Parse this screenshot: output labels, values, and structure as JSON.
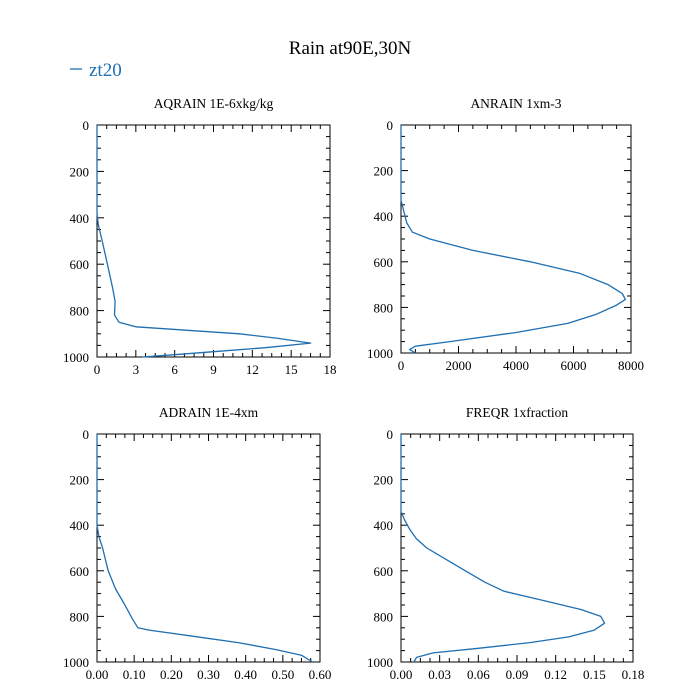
{
  "title": "Rain at90E,30N",
  "legend": {
    "label": "zt20",
    "color": "#1f6fb2"
  },
  "chart_data": [
    {
      "type": "line",
      "title": "AQRAIN  1E-6xkg/kg",
      "xlim": [
        0,
        18
      ],
      "ylim": [
        1000,
        0
      ],
      "xticks": [
        0,
        3,
        6,
        9,
        12,
        15,
        18
      ],
      "xtick_labels": [
        "0",
        "3",
        "6",
        "9",
        "12",
        "15",
        "18"
      ],
      "yticks": [
        0,
        200,
        400,
        600,
        800,
        1000
      ],
      "ytick_labels": [
        "0",
        "200",
        "400",
        "600",
        "800",
        "1000"
      ],
      "series": [
        {
          "name": "zt20",
          "points": [
            [
              0,
              0
            ],
            [
              0,
              380
            ],
            [
              0.1,
              430
            ],
            [
              0.4,
              500
            ],
            [
              0.8,
              600
            ],
            [
              1.2,
              700
            ],
            [
              1.4,
              760
            ],
            [
              1.35,
              820
            ],
            [
              1.7,
              850
            ],
            [
              3,
              870
            ],
            [
              7,
              885
            ],
            [
              11,
              900
            ],
            [
              14,
              920
            ],
            [
              16.5,
              940
            ],
            [
              13,
              960
            ],
            [
              9.5,
              975
            ],
            [
              6,
              990
            ],
            [
              3.5,
              1000
            ]
          ]
        }
      ]
    },
    {
      "type": "line",
      "title": "ANRAIN  1xm-3",
      "xlim": [
        0,
        8000
      ],
      "ylim": [
        1000,
        0
      ],
      "xticks": [
        0,
        2000,
        4000,
        6000,
        8000
      ],
      "xtick_labels": [
        "0",
        "2000",
        "4000",
        "6000",
        "8000"
      ],
      "yticks": [
        0,
        200,
        400,
        600,
        800,
        1000
      ],
      "ytick_labels": [
        "0",
        "200",
        "400",
        "600",
        "800",
        "1000"
      ],
      "series": [
        {
          "name": "zt20",
          "points": [
            [
              0,
              0
            ],
            [
              0,
              330
            ],
            [
              100,
              380
            ],
            [
              200,
              430
            ],
            [
              400,
              470
            ],
            [
              1000,
              500
            ],
            [
              2500,
              550
            ],
            [
              4500,
              600
            ],
            [
              6200,
              650
            ],
            [
              7200,
              700
            ],
            [
              7700,
              740
            ],
            [
              7800,
              765
            ],
            [
              7500,
              790
            ],
            [
              6800,
              830
            ],
            [
              5800,
              870
            ],
            [
              4000,
              910
            ],
            [
              1700,
              950
            ],
            [
              500,
              970
            ],
            [
              300,
              985
            ],
            [
              500,
              1000
            ]
          ]
        }
      ]
    },
    {
      "type": "line",
      "title": "ADRAIN  1E-4xm",
      "xlim": [
        0,
        0.6
      ],
      "ylim": [
        1000,
        0
      ],
      "xticks": [
        0,
        0.1,
        0.2,
        0.3,
        0.4,
        0.5,
        0.6
      ],
      "xtick_labels": [
        "0.00",
        "0.10",
        "0.20",
        "0.30",
        "0.40",
        "0.50",
        "0.60"
      ],
      "yticks": [
        0,
        200,
        400,
        600,
        800,
        1000
      ],
      "ytick_labels": [
        "0",
        "200",
        "400",
        "600",
        "800",
        "1000"
      ],
      "series": [
        {
          "name": "zt20",
          "points": [
            [
              0,
              0
            ],
            [
              0,
              400
            ],
            [
              0.005,
              450
            ],
            [
              0.015,
              500
            ],
            [
              0.03,
              600
            ],
            [
              0.05,
              680
            ],
            [
              0.075,
              750
            ],
            [
              0.095,
              810
            ],
            [
              0.11,
              850
            ],
            [
              0.14,
              860
            ],
            [
              0.25,
              885
            ],
            [
              0.38,
              915
            ],
            [
              0.48,
              945
            ],
            [
              0.55,
              970
            ],
            [
              0.58,
              1000
            ]
          ]
        }
      ]
    },
    {
      "type": "line",
      "title": "FREQR  1xfraction",
      "xlim": [
        0,
        0.18
      ],
      "ylim": [
        1000,
        0
      ],
      "xticks": [
        0,
        0.03,
        0.06,
        0.09,
        0.12,
        0.15,
        0.18
      ],
      "xtick_labels": [
        "0.00",
        "0.03",
        "0.06",
        "0.09",
        "0.12",
        "0.15",
        "0.18"
      ],
      "yticks": [
        0,
        200,
        400,
        600,
        800,
        1000
      ],
      "ytick_labels": [
        "0",
        "200",
        "400",
        "600",
        "800",
        "1000"
      ],
      "series": [
        {
          "name": "zt20",
          "points": [
            [
              0,
              0
            ],
            [
              0,
              340
            ],
            [
              0.003,
              380
            ],
            [
              0.007,
              420
            ],
            [
              0.012,
              460
            ],
            [
              0.02,
              500
            ],
            [
              0.035,
              550
            ],
            [
              0.05,
              600
            ],
            [
              0.065,
              650
            ],
            [
              0.08,
              690
            ],
            [
              0.11,
              730
            ],
            [
              0.14,
              770
            ],
            [
              0.155,
              800
            ],
            [
              0.158,
              830
            ],
            [
              0.15,
              860
            ],
            [
              0.13,
              890
            ],
            [
              0.1,
              915
            ],
            [
              0.06,
              940
            ],
            [
              0.025,
              960
            ],
            [
              0.012,
              980
            ],
            [
              0.01,
              1000
            ]
          ]
        }
      ]
    }
  ]
}
